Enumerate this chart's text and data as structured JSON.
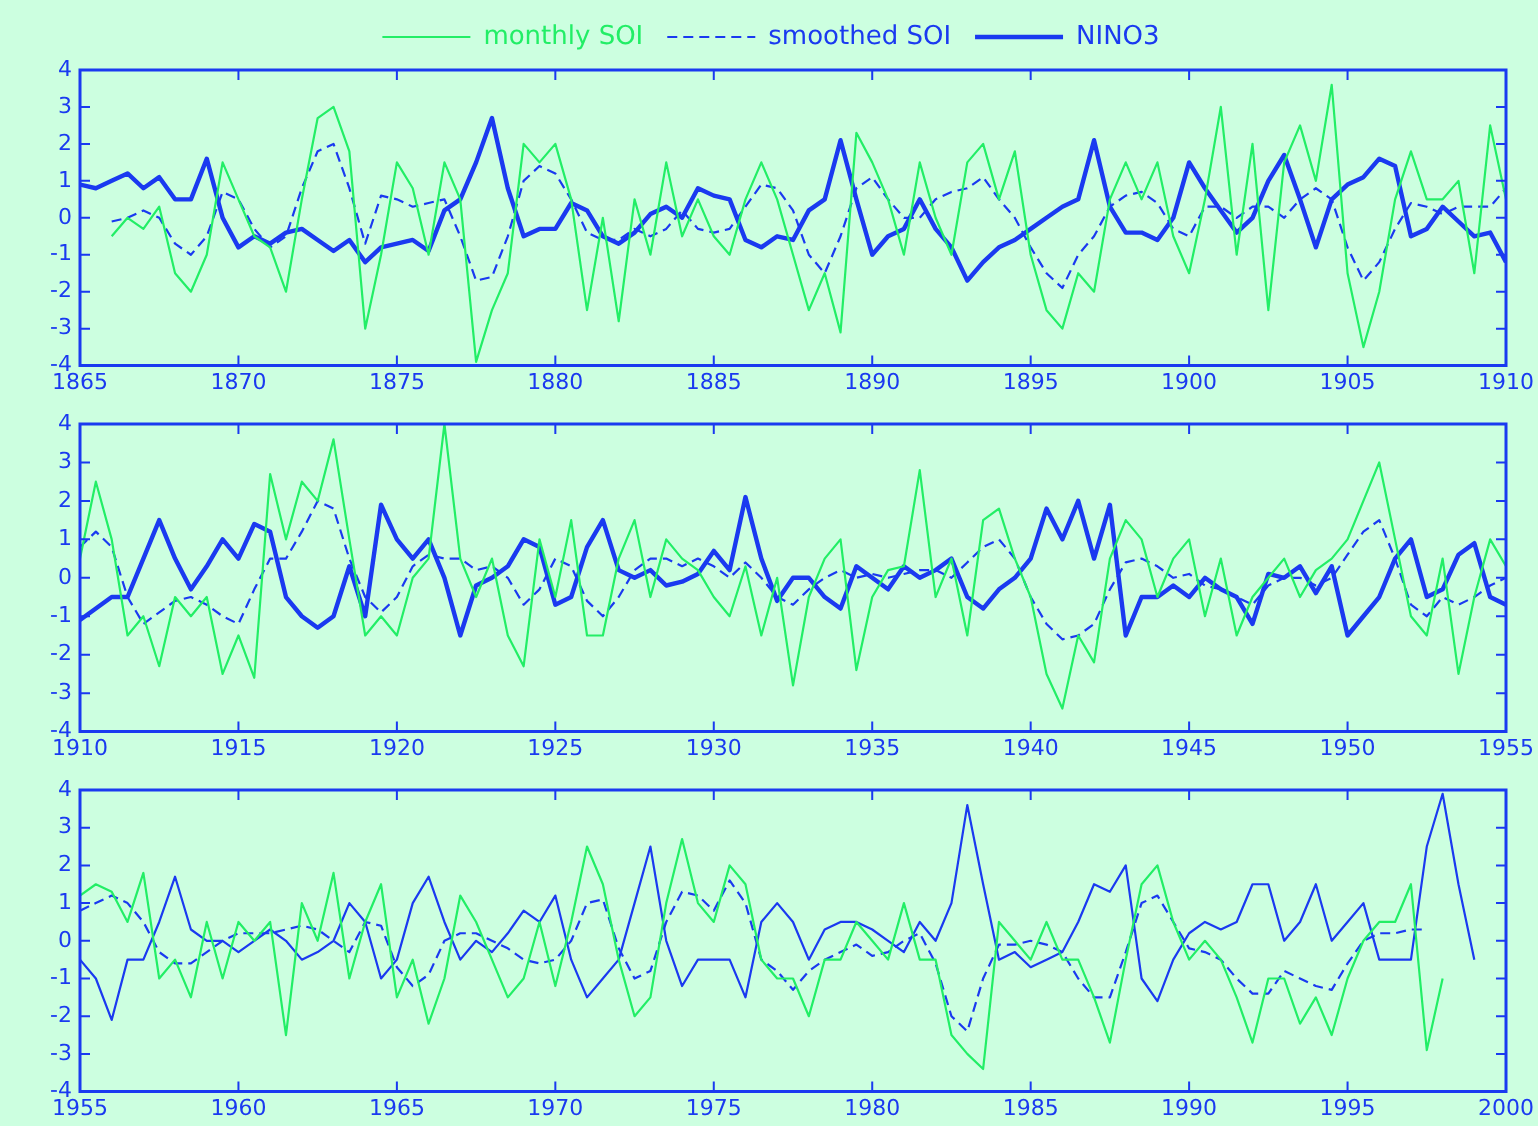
{
  "chart_data": [
    {
      "type": "line",
      "legend": "top",
      "grid": false,
      "marker": "none",
      "xlim": [
        1865,
        1910
      ],
      "xticks": [
        1865,
        1870,
        1875,
        1880,
        1885,
        1890,
        1895,
        1900,
        1905,
        1910
      ],
      "ylim": [
        -4,
        4
      ],
      "yticks": [
        -4,
        -3,
        -2,
        -1,
        0,
        1,
        2,
        3,
        4
      ],
      "x": [
        1865,
        1865.5,
        1866,
        1866.5,
        1867,
        1867.5,
        1868,
        1868.5,
        1869,
        1869.5,
        1870,
        1870.5,
        1871,
        1871.5,
        1872,
        1872.5,
        1873,
        1873.5,
        1874,
        1874.5,
        1875,
        1875.5,
        1876,
        1876.5,
        1877,
        1877.5,
        1878,
        1878.5,
        1879,
        1879.5,
        1880,
        1880.5,
        1881,
        1881.5,
        1882,
        1882.5,
        1883,
        1883.5,
        1884,
        1884.5,
        1885,
        1885.5,
        1886,
        1886.5,
        1887,
        1887.5,
        1888,
        1888.5,
        1889,
        1889.5,
        1890,
        1890.5,
        1891,
        1891.5,
        1892,
        1892.5,
        1893,
        1893.5,
        1894,
        1894.5,
        1895,
        1895.5,
        1896,
        1896.5,
        1897,
        1897.5,
        1898,
        1898.5,
        1899,
        1899.5,
        1900,
        1900.5,
        1901,
        1901.5,
        1902,
        1902.5,
        1903,
        1903.5,
        1904,
        1904.5,
        1905,
        1905.5,
        1906,
        1906.5,
        1907,
        1907.5,
        1908,
        1908.5,
        1909,
        1909.5,
        1910
      ],
      "series": [
        {
          "name": "monthly SOI",
          "color": "#22ee66",
          "line_style": "solid",
          "values": [
            null,
            null,
            -0.5,
            0.0,
            -0.3,
            0.3,
            -1.5,
            -2.0,
            -1.0,
            1.5,
            0.5,
            -0.5,
            -0.8,
            -2.0,
            0.5,
            2.7,
            3.0,
            1.8,
            -3.0,
            -1.0,
            1.5,
            0.8,
            -1.0,
            1.5,
            0.5,
            -3.9,
            -2.5,
            -1.5,
            2.0,
            1.5,
            2.0,
            0.5,
            -2.5,
            0.0,
            -2.8,
            0.5,
            -1.0,
            1.5,
            -0.5,
            0.5,
            -0.5,
            -1.0,
            0.5,
            1.5,
            0.5,
            -1.0,
            -2.5,
            -1.5,
            -3.1,
            2.3,
            1.5,
            0.5,
            -1.0,
            1.5,
            0.0,
            -1.0,
            1.5,
            2.0,
            0.5,
            1.8,
            -1.0,
            -2.5,
            -3.0,
            -1.5,
            -2.0,
            0.5,
            1.5,
            0.5,
            1.5,
            -0.5,
            -1.5,
            0.5,
            3.0,
            -1.0,
            2.0,
            -2.5,
            1.5,
            2.5,
            1.0,
            3.6,
            -1.5,
            -3.5,
            -2.0,
            0.5,
            1.8,
            0.5,
            0.5,
            1.0,
            -1.5,
            2.5,
            0.5
          ]
        },
        {
          "name": "smoothed SOI",
          "color": "#1a3af0",
          "line_style": "dashed",
          "values": [
            null,
            null,
            -0.1,
            0.0,
            0.2,
            0.0,
            -0.7,
            -1.0,
            -0.5,
            0.7,
            0.5,
            -0.3,
            -0.8,
            -0.5,
            0.8,
            1.8,
            2.0,
            0.8,
            -0.7,
            0.6,
            0.5,
            0.3,
            0.4,
            0.5,
            -0.5,
            -1.7,
            -1.6,
            -0.5,
            1.0,
            1.4,
            1.2,
            0.5,
            -0.4,
            -0.6,
            -0.6,
            -0.3,
            -0.5,
            -0.3,
            0.2,
            -0.3,
            -0.4,
            -0.3,
            0.3,
            0.9,
            0.8,
            0.2,
            -1.0,
            -1.5,
            -0.5,
            0.8,
            1.1,
            0.5,
            0.0,
            0.0,
            0.5,
            0.7,
            0.8,
            1.1,
            0.5,
            0.0,
            -0.8,
            -1.5,
            -1.9,
            -1.0,
            -0.5,
            0.3,
            0.6,
            0.7,
            0.4,
            -0.3,
            -0.5,
            0.3,
            0.3,
            0.0,
            0.3,
            0.3,
            0.0,
            0.5,
            0.8,
            0.5,
            -0.8,
            -1.7,
            -1.2,
            -0.3,
            0.4,
            0.3,
            0.1,
            0.3,
            0.3,
            0.3,
            0.8
          ]
        },
        {
          "name": "NINO3",
          "color": "#1a3af0",
          "line_style": "solid",
          "values": [
            0.9,
            0.8,
            1.0,
            1.2,
            0.8,
            1.1,
            0.5,
            0.5,
            1.6,
            0.0,
            -0.8,
            -0.5,
            -0.7,
            -0.4,
            -0.3,
            -0.6,
            -0.9,
            -0.6,
            -1.2,
            -0.8,
            -0.7,
            -0.6,
            -0.9,
            0.2,
            0.5,
            1.5,
            2.7,
            0.8,
            -0.5,
            -0.3,
            -0.3,
            0.4,
            0.2,
            -0.5,
            -0.7,
            -0.4,
            0.1,
            0.3,
            0.0,
            0.8,
            0.6,
            0.5,
            -0.6,
            -0.8,
            -0.5,
            -0.6,
            0.2,
            0.5,
            2.1,
            0.5,
            -1.0,
            -0.5,
            -0.3,
            0.5,
            -0.3,
            -0.8,
            -1.7,
            -1.2,
            -0.8,
            -0.6,
            -0.3,
            0.0,
            0.3,
            0.5,
            2.1,
            0.3,
            -0.4,
            -0.4,
            -0.6,
            0.0,
            1.5,
            0.8,
            0.2,
            -0.4,
            0.0,
            1.0,
            1.7,
            0.5,
            -0.8,
            0.5,
            0.9,
            1.1,
            1.6,
            1.4,
            -0.5,
            -0.3,
            0.3,
            -0.1,
            -0.5,
            -0.4,
            -1.2
          ]
        }
      ]
    },
    {
      "type": "line",
      "grid": false,
      "marker": "none",
      "xlim": [
        1910,
        1955
      ],
      "xticks": [
        1910,
        1915,
        1920,
        1925,
        1930,
        1935,
        1940,
        1945,
        1950,
        1955
      ],
      "ylim": [
        -4,
        4
      ],
      "yticks": [
        -4,
        -3,
        -2,
        -1,
        0,
        1,
        2,
        3,
        4
      ],
      "x": [
        1910,
        1910.5,
        1911,
        1911.5,
        1912,
        1912.5,
        1913,
        1913.5,
        1914,
        1914.5,
        1915,
        1915.5,
        1916,
        1916.5,
        1917,
        1917.5,
        1918,
        1918.5,
        1919,
        1919.5,
        1920,
        1920.5,
        1921,
        1921.5,
        1922,
        1922.5,
        1923,
        1923.5,
        1924,
        1924.5,
        1925,
        1925.5,
        1926,
        1926.5,
        1927,
        1927.5,
        1928,
        1928.5,
        1929,
        1929.5,
        1930,
        1930.5,
        1931,
        1931.5,
        1932,
        1932.5,
        1933,
        1933.5,
        1934,
        1934.5,
        1935,
        1935.5,
        1936,
        1936.5,
        1937,
        1937.5,
        1938,
        1938.5,
        1939,
        1939.5,
        1940,
        1940.5,
        1941,
        1941.5,
        1942,
        1942.5,
        1943,
        1943.5,
        1944,
        1944.5,
        1945,
        1945.5,
        1946,
        1946.5,
        1947,
        1947.5,
        1948,
        1948.5,
        1949,
        1949.5,
        1950,
        1950.5,
        1951,
        1951.5,
        1952,
        1952.5,
        1953,
        1953.5,
        1954,
        1954.5,
        1955
      ],
      "series": [
        {
          "color": "#22ee66",
          "line_style": "solid",
          "values": [
            0.5,
            2.5,
            1.0,
            -1.5,
            -1.0,
            -2.3,
            -0.5,
            -1.0,
            -0.5,
            -2.5,
            -1.5,
            -2.6,
            2.7,
            1.0,
            2.5,
            2.0,
            3.6,
            1.0,
            -1.5,
            -1.0,
            -1.5,
            0.0,
            0.5,
            4.0,
            0.5,
            -0.5,
            0.5,
            -1.5,
            -2.3,
            1.0,
            -0.5,
            1.5,
            -1.5,
            -1.5,
            0.5,
            1.5,
            -0.5,
            1.0,
            0.5,
            0.2,
            -0.5,
            -1.0,
            0.3,
            -1.5,
            0.0,
            -2.8,
            -0.5,
            0.5,
            1.0,
            -2.4,
            -0.5,
            0.2,
            0.3,
            2.8,
            -0.5,
            0.5,
            -1.5,
            1.5,
            1.8,
            0.5,
            -0.5,
            -2.5,
            -3.4,
            -1.5,
            -2.2,
            0.5,
            1.5,
            1.0,
            -0.5,
            0.5,
            1.0,
            -1.0,
            0.5,
            -1.5,
            -0.5,
            0.0,
            0.5,
            -0.5,
            0.2,
            0.5,
            1.0,
            2.0,
            3.0,
            1.0,
            -1.0,
            -1.5,
            0.5,
            -2.5,
            -0.5,
            1.0,
            0.3
          ]
        },
        {
          "color": "#1a3af0",
          "line_style": "dashed",
          "values": [
            0.8,
            1.2,
            0.8,
            -0.5,
            -1.2,
            -0.9,
            -0.6,
            -0.5,
            -0.7,
            -1.0,
            -1.2,
            -0.3,
            0.5,
            0.5,
            1.2,
            2.0,
            1.8,
            0.5,
            -0.5,
            -0.9,
            -0.5,
            0.3,
            0.6,
            0.5,
            0.5,
            0.2,
            0.3,
            0.0,
            -0.7,
            -0.3,
            0.5,
            0.3,
            -0.6,
            -1.0,
            -0.5,
            0.2,
            0.5,
            0.5,
            0.3,
            0.5,
            0.3,
            0.0,
            0.4,
            0.0,
            -0.5,
            -0.7,
            -0.3,
            0.0,
            0.2,
            0.0,
            0.1,
            0.0,
            0.1,
            0.2,
            0.2,
            0.0,
            0.4,
            0.8,
            1.0,
            0.5,
            -0.5,
            -1.2,
            -1.6,
            -1.5,
            -1.2,
            -0.3,
            0.4,
            0.5,
            0.3,
            0.0,
            0.1,
            -0.2,
            -0.3,
            -0.5,
            -0.7,
            -0.2,
            0.0,
            0.0,
            -0.2,
            0.0,
            0.6,
            1.2,
            1.5,
            0.5,
            -0.7,
            -1.0,
            -0.5,
            -0.7,
            -0.5,
            -0.2,
            0.0
          ]
        },
        {
          "color": "#1a3af0",
          "line_style": "solid",
          "values": [
            -1.1,
            -0.8,
            -0.5,
            -0.5,
            0.5,
            1.5,
            0.5,
            -0.3,
            0.3,
            1.0,
            0.5,
            1.4,
            1.2,
            -0.5,
            -1.0,
            -1.3,
            -1.0,
            0.3,
            -1.0,
            1.9,
            1.0,
            0.5,
            1.0,
            0.0,
            -1.5,
            -0.2,
            0.0,
            0.3,
            1.0,
            0.8,
            -0.7,
            -0.5,
            0.8,
            1.5,
            0.2,
            0.0,
            0.2,
            -0.2,
            -0.1,
            0.1,
            0.7,
            0.2,
            2.1,
            0.5,
            -0.6,
            0.0,
            0.0,
            -0.5,
            -0.8,
            0.3,
            0.0,
            -0.3,
            0.3,
            0.0,
            0.2,
            0.5,
            -0.5,
            -0.8,
            -0.3,
            0.0,
            0.5,
            1.8,
            1.0,
            2.0,
            0.5,
            1.9,
            -1.5,
            -0.5,
            -0.5,
            -0.2,
            -0.5,
            0.0,
            -0.3,
            -0.5,
            -1.2,
            0.1,
            0.0,
            0.3,
            -0.4,
            0.3,
            -1.5,
            -1.0,
            -0.5,
            0.5,
            1.0,
            -0.5,
            -0.3,
            0.6,
            0.9,
            -0.5,
            -0.7
          ]
        }
      ]
    },
    {
      "type": "line",
      "grid": false,
      "marker": "none",
      "xlim": [
        1955,
        2000
      ],
      "xticks": [
        1955,
        1960,
        1965,
        1970,
        1975,
        1980,
        1985,
        1990,
        1995,
        2000
      ],
      "ylim": [
        -4,
        4
      ],
      "yticks": [
        -4,
        -3,
        -2,
        -1,
        0,
        1,
        2,
        3,
        4
      ],
      "x": [
        1955,
        1955.5,
        1956,
        1956.5,
        1957,
        1957.5,
        1958,
        1958.5,
        1959,
        1959.5,
        1960,
        1960.5,
        1961,
        1961.5,
        1962,
        1962.5,
        1963,
        1963.5,
        1964,
        1964.5,
        1965,
        1965.5,
        1966,
        1966.5,
        1967,
        1967.5,
        1968,
        1968.5,
        1969,
        1969.5,
        1970,
        1970.5,
        1971,
        1971.5,
        1972,
        1972.5,
        1973,
        1973.5,
        1974,
        1974.5,
        1975,
        1975.5,
        1976,
        1976.5,
        1977,
        1977.5,
        1978,
        1978.5,
        1979,
        1979.5,
        1980,
        1980.5,
        1981,
        1981.5,
        1982,
        1982.5,
        1983,
        1983.5,
        1984,
        1984.5,
        1985,
        1985.5,
        1986,
        1986.5,
        1987,
        1987.5,
        1988,
        1988.5,
        1989,
        1989.5,
        1990,
        1990.5,
        1991,
        1991.5,
        1992,
        1992.5,
        1993,
        1993.5,
        1994,
        1994.5,
        1995,
        1995.5,
        1996,
        1996.5,
        1997,
        1997.5,
        1998,
        1998.5,
        1999
      ],
      "series": [
        {
          "color": "#22ee66",
          "line_style": "solid",
          "values": [
            1.2,
            1.5,
            1.3,
            0.5,
            1.8,
            -1.0,
            -0.5,
            -1.5,
            0.5,
            -1.0,
            0.5,
            0.0,
            0.5,
            -2.5,
            1.0,
            0.0,
            1.8,
            -1.0,
            0.5,
            1.5,
            -1.5,
            -0.5,
            -2.2,
            -1.0,
            1.2,
            0.5,
            -0.5,
            -1.5,
            -1.0,
            0.5,
            -1.2,
            0.5,
            2.5,
            1.5,
            -0.5,
            -2.0,
            -1.5,
            1.0,
            2.7,
            1.0,
            0.5,
            2.0,
            1.5,
            -0.5,
            -1.0,
            -1.0,
            -2.0,
            -0.5,
            -0.5,
            0.5,
            0.0,
            -0.5,
            1.0,
            -0.5,
            -0.5,
            -2.5,
            -3.0,
            -3.4,
            0.5,
            0.0,
            -0.5,
            0.5,
            -0.5,
            -0.5,
            -1.5,
            -2.7,
            -0.5,
            1.5,
            2.0,
            0.5,
            -0.5,
            0.0,
            -0.5,
            -1.5,
            -2.7,
            -1.0,
            -1.0,
            -2.2,
            -1.5,
            -2.5,
            -1.0,
            0.0,
            0.5,
            0.5,
            1.5,
            -2.9,
            -1.0,
            null,
            null
          ]
        },
        {
          "color": "#1a3af0",
          "line_style": "dashed",
          "values": [
            0.8,
            1.0,
            1.2,
            1.0,
            0.5,
            -0.3,
            -0.6,
            -0.6,
            -0.3,
            0.0,
            0.2,
            0.2,
            0.2,
            0.3,
            0.4,
            0.3,
            0.0,
            -0.3,
            0.5,
            0.4,
            -0.7,
            -1.2,
            -0.9,
            0.0,
            0.2,
            0.2,
            0.0,
            -0.2,
            -0.5,
            -0.6,
            -0.5,
            0.0,
            1.0,
            1.1,
            -0.2,
            -1.0,
            -0.8,
            0.5,
            1.3,
            1.2,
            0.8,
            1.6,
            1.0,
            -0.5,
            -0.8,
            -1.3,
            -0.8,
            -0.5,
            -0.3,
            -0.1,
            -0.4,
            -0.3,
            0.0,
            0.2,
            -0.6,
            -2.0,
            -2.4,
            -1.0,
            -0.1,
            -0.1,
            0.0,
            -0.1,
            -0.3,
            -1.0,
            -1.5,
            -1.5,
            -0.3,
            1.0,
            1.2,
            0.5,
            -0.2,
            -0.3,
            -0.5,
            -1.0,
            -1.4,
            -1.4,
            -0.8,
            -1.0,
            -1.2,
            -1.3,
            -0.6,
            0.0,
            0.2,
            0.2,
            0.3,
            0.3,
            null,
            null,
            null
          ]
        },
        {
          "color": "#1a3af0",
          "line_style": "solid",
          "values": [
            -0.5,
            -1.0,
            -2.1,
            -0.5,
            -0.5,
            0.5,
            1.7,
            0.3,
            0.0,
            0.0,
            -0.3,
            0.0,
            0.3,
            0.0,
            -0.5,
            -0.3,
            0.0,
            1.0,
            0.5,
            -1.0,
            -0.5,
            1.0,
            1.7,
            0.5,
            -0.5,
            0.0,
            -0.3,
            0.2,
            0.8,
            0.5,
            1.2,
            -0.5,
            -1.5,
            -1.0,
            -0.5,
            1.0,
            2.5,
            0.0,
            -1.2,
            -0.5,
            -0.5,
            -0.5,
            -1.5,
            0.5,
            1.0,
            0.5,
            -0.5,
            0.3,
            0.5,
            0.5,
            0.3,
            0.0,
            -0.3,
            0.5,
            0.0,
            1.0,
            3.6,
            1.5,
            -0.5,
            -0.3,
            -0.7,
            -0.5,
            -0.3,
            0.5,
            1.5,
            1.3,
            2.0,
            -1.0,
            -1.6,
            -0.5,
            0.2,
            0.5,
            0.3,
            0.5,
            1.5,
            1.5,
            0.0,
            0.5,
            1.5,
            0.0,
            0.5,
            1.0,
            -0.5,
            -0.5,
            -0.5,
            2.5,
            3.9,
            1.5,
            -0.5
          ]
        }
      ]
    }
  ]
}
